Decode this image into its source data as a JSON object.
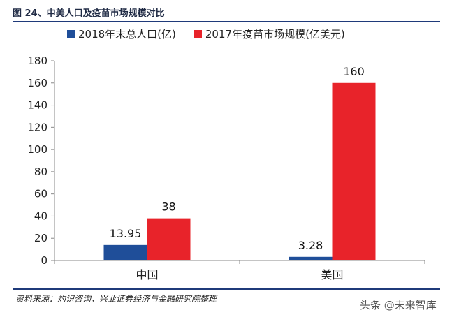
{
  "figure": {
    "title": "图 24、中美人口及疫苗市场规模对比",
    "source": "资料来源：灼识咨询，兴业证券经济与金融研究院整理",
    "watermark": "头条 @未来智库"
  },
  "colors": {
    "series_pop": "#1f4e99",
    "series_market": "#e8232a",
    "axis": "#888888",
    "rule": "#1f3a7a"
  },
  "chart_data": {
    "type": "bar",
    "categories": [
      "中国",
      "美国"
    ],
    "series": [
      {
        "name": "2018年末总人口(亿)",
        "values": [
          13.95,
          3.28
        ]
      },
      {
        "name": "2017年疫苗市场规模(亿美元)",
        "values": [
          38,
          160
        ]
      }
    ],
    "data_labels": [
      [
        "13.95",
        "3.28"
      ],
      [
        "38",
        "160"
      ]
    ],
    "ylim": [
      0,
      180
    ],
    "yticks": [
      0,
      20,
      40,
      60,
      80,
      100,
      120,
      140,
      160,
      180
    ],
    "grid": false,
    "legend": "top"
  }
}
